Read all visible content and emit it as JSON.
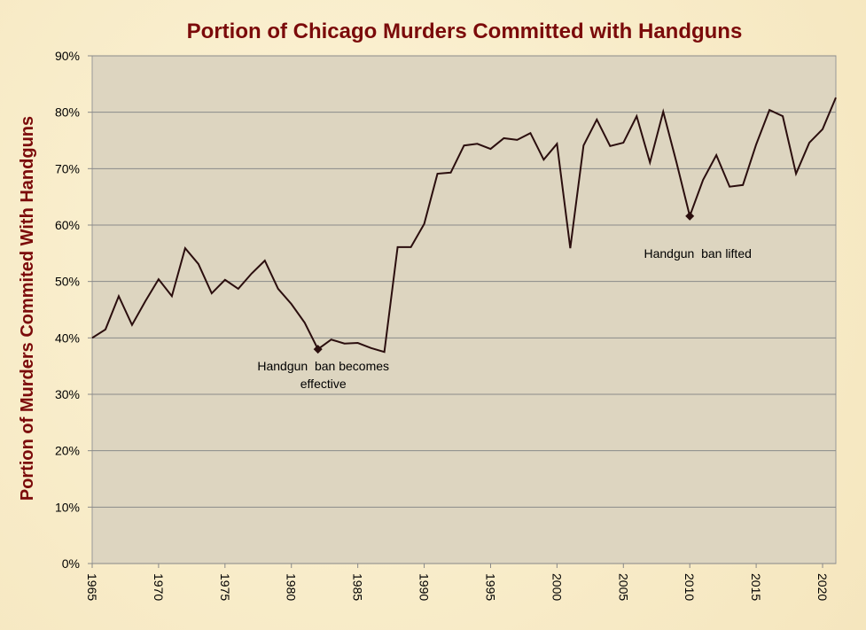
{
  "chart_data": {
    "type": "line",
    "title": "Portion of Chicago Murders Committed with Handguns",
    "y_label": "Portion of Murders Commited With Handguns",
    "x": [
      1965,
      1966,
      1967,
      1968,
      1969,
      1970,
      1971,
      1972,
      1973,
      1974,
      1975,
      1976,
      1977,
      1978,
      1979,
      1980,
      1981,
      1982,
      1983,
      1984,
      1985,
      1986,
      1987,
      1988,
      1989,
      1990,
      1991,
      1992,
      1993,
      1994,
      1995,
      1996,
      1997,
      1998,
      1999,
      2000,
      2001,
      2002,
      2003,
      2004,
      2005,
      2006,
      2007,
      2008,
      2009,
      2010,
      2011,
      2012,
      2013,
      2014,
      2015,
      2016,
      2017,
      2018,
      2019,
      2020,
      2021
    ],
    "series": [
      {
        "color": "#2b0e0e",
        "values": [
          40.0,
          41.5,
          47.4,
          42.3,
          46.5,
          50.4,
          47.4,
          55.9,
          53.1,
          47.9,
          50.3,
          48.7,
          51.4,
          53.7,
          48.7,
          46.0,
          42.7,
          38.0,
          39.7,
          39.0,
          39.1,
          38.2,
          37.5,
          56.1,
          56.1,
          60.2,
          69.1,
          69.3,
          74.1,
          74.4,
          73.5,
          75.4,
          75.1,
          76.3,
          71.6,
          74.4,
          55.9,
          74.1,
          78.7,
          74.0,
          74.6,
          79.3,
          71.1,
          80.1,
          71.1,
          61.6,
          68.0,
          72.4,
          66.8,
          67.1,
          74.3,
          80.4,
          79.3,
          69.1,
          74.6,
          77.0,
          82.6
        ]
      }
    ],
    "xlim": [
      1965,
      2021
    ],
    "xticks": [
      1965,
      1970,
      1975,
      1980,
      1985,
      1990,
      1995,
      2000,
      2005,
      2010,
      2015,
      2020
    ],
    "ylim": [
      0,
      90
    ],
    "yticks": [
      {
        "value": 0,
        "label": "0%"
      },
      {
        "value": 10,
        "label": "10%"
      },
      {
        "value": 20,
        "label": "20%"
      },
      {
        "value": 30,
        "label": "30%"
      },
      {
        "value": 40,
        "label": "40%"
      },
      {
        "value": 50,
        "label": "50%"
      },
      {
        "value": 60,
        "label": "60%"
      },
      {
        "value": 70,
        "label": "70%"
      },
      {
        "value": 80,
        "label": "80%"
      },
      {
        "value": 90,
        "label": "90%"
      }
    ],
    "grid": true,
    "annotations": [
      {
        "x": 1982,
        "text": [
          "Handgun  ban becomes",
          "effective"
        ]
      },
      {
        "x": 2010,
        "text": [
          "Handgun  ban lifted"
        ]
      }
    ]
  }
}
